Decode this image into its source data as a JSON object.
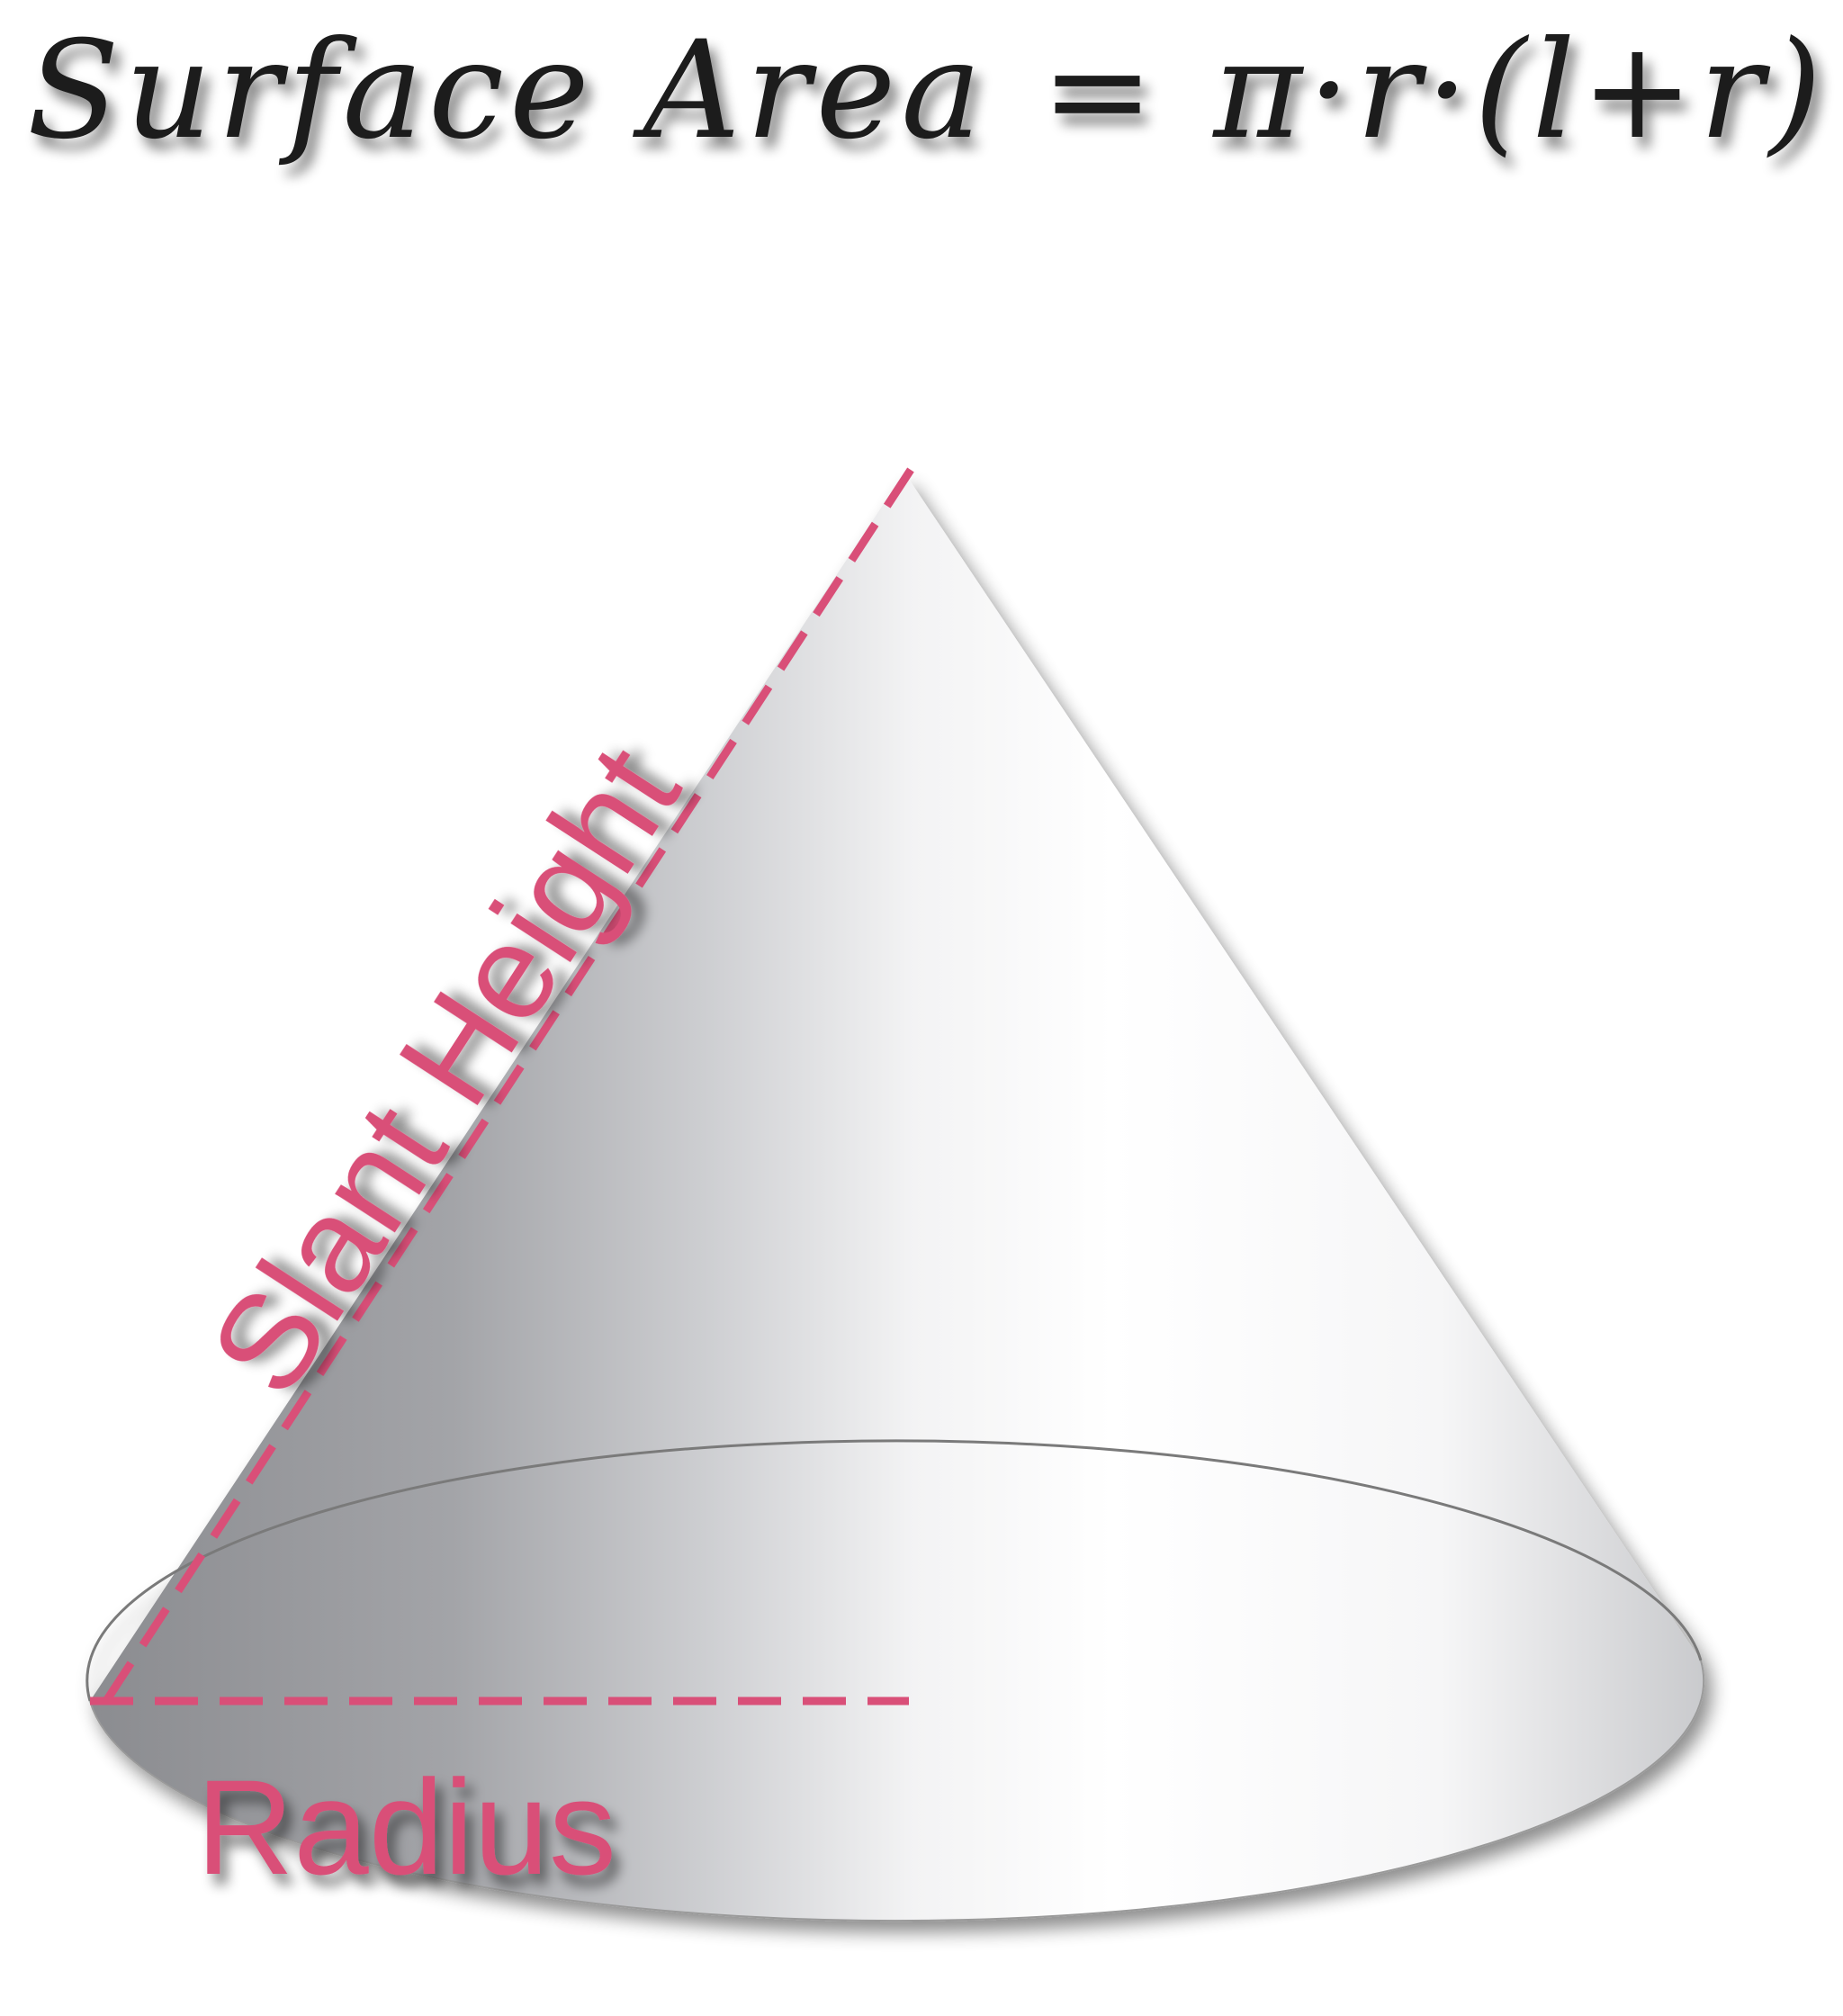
{
  "formula": {
    "left_side": "Surface Area",
    "equals": "=",
    "right_side": "π·r·(l+r)"
  },
  "labels": {
    "slant_height": "Slant Height",
    "radius": "Radius"
  },
  "colors": {
    "accent": "#d94f78",
    "text": "#1a1a1a",
    "cone_shade": "#8e8f93",
    "cone_light": "#ffffff",
    "base_outline": "#777777"
  }
}
